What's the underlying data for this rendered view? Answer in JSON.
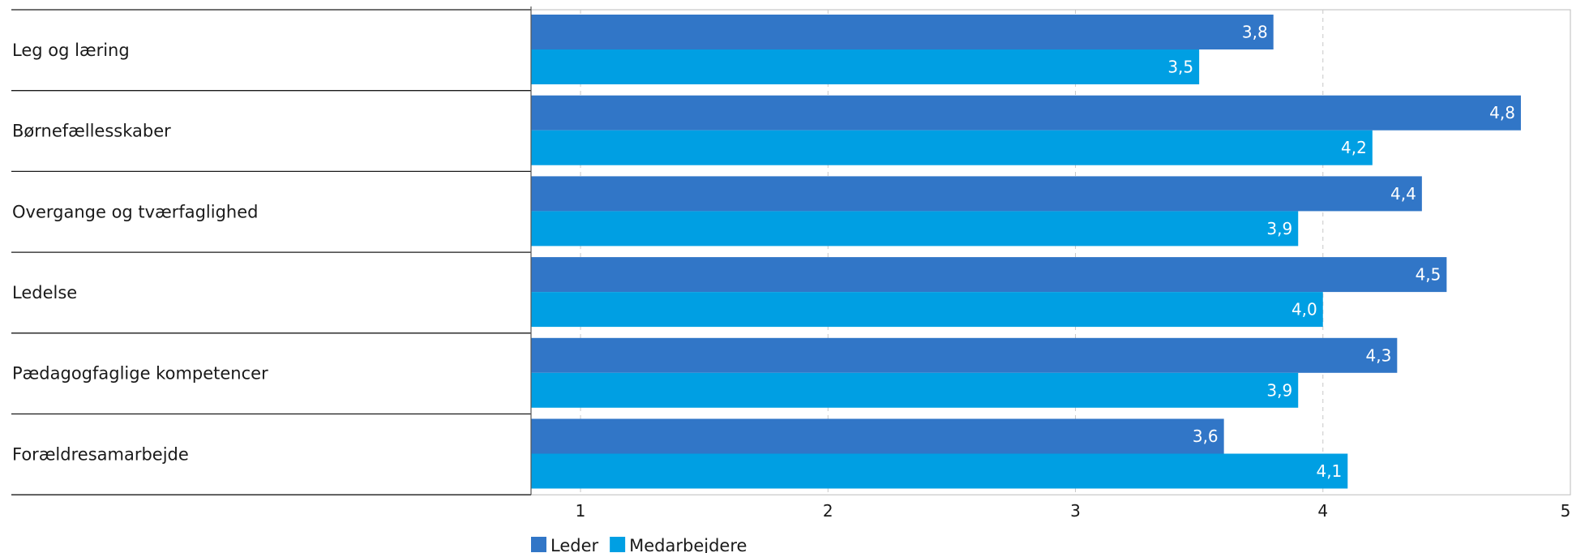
{
  "chart_data": {
    "type": "bar",
    "orientation": "horizontal",
    "categories": [
      "Leg og læring",
      "Børnefællesskaber",
      "Overgange og tværfaglighed",
      "Ledelse",
      "Pædagogfaglige kompetencer",
      "Forældresamarbejde"
    ],
    "series": [
      {
        "name": "Leder",
        "color": "#3176c7",
        "values": [
          3.8,
          4.8,
          4.4,
          4.5,
          4.3,
          3.6
        ],
        "labels": [
          "3,8",
          "4,8",
          "4,4",
          "4,5",
          "4,3",
          "3,6"
        ]
      },
      {
        "name": "Medarbejdere",
        "color": "#009fe3",
        "values": [
          3.5,
          4.2,
          3.9,
          4.0,
          3.9,
          4.1
        ],
        "labels": [
          "3,5",
          "4,2",
          "3,9",
          "4,0",
          "3,9",
          "4,1"
        ]
      }
    ],
    "xlim": [
      0.8,
      5
    ],
    "x_ticks": [
      1,
      2,
      3,
      4,
      5
    ],
    "x_tick_labels": [
      "1",
      "2",
      "3",
      "4",
      "5"
    ],
    "grid": true,
    "legend_position": "bottom-left"
  }
}
